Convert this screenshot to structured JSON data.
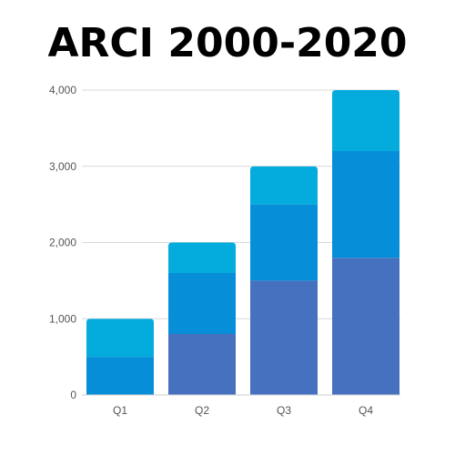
{
  "chart_data": {
    "type": "bar",
    "stacked": true,
    "title": "ARCI 2000-2020",
    "xlabel": "",
    "ylabel": "",
    "categories": [
      "Q1",
      "Q2",
      "Q3",
      "Q4"
    ],
    "ylim": [
      0,
      4000
    ],
    "yticks": [
      0,
      1000,
      2000,
      3000,
      4000
    ],
    "ytick_labels": [
      "0",
      "1,000",
      "2,000",
      "3,000",
      "4,000"
    ],
    "grid": true,
    "legend": "none",
    "series": [
      {
        "values": [
          0,
          800,
          1500,
          1800
        ],
        "color": "#4571BF"
      },
      {
        "values": [
          500,
          800,
          1000,
          1400
        ],
        "color": "#068FD8"
      },
      {
        "values": [
          500,
          400,
          500,
          800
        ],
        "color": "#04ACDD"
      }
    ]
  }
}
